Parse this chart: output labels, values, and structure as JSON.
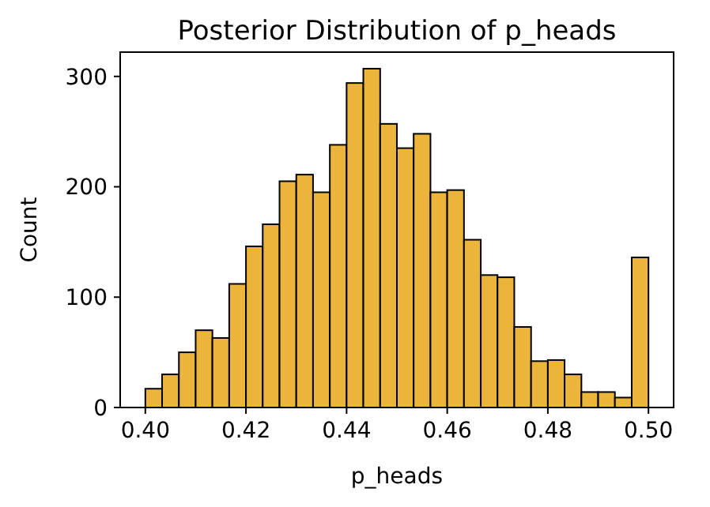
{
  "chart_data": {
    "type": "histogram",
    "title": "Posterior Distribution of p_heads",
    "xlabel": "p_heads",
    "ylabel": "Count",
    "color": "#ebb53c",
    "bins": [
      0.4,
      0.40333,
      0.40667,
      0.41,
      0.41333,
      0.41667,
      0.42,
      0.42333,
      0.42667,
      0.43,
      0.43333,
      0.43667,
      0.44,
      0.44333,
      0.44667,
      0.45,
      0.45333,
      0.45667,
      0.46,
      0.46333,
      0.46667,
      0.47,
      0.47333,
      0.47667,
      0.48,
      0.48333,
      0.48667,
      0.49,
      0.49333,
      0.49667,
      0.5
    ],
    "values": [
      17,
      30,
      50,
      70,
      63,
      112,
      146,
      166,
      205,
      211,
      195,
      238,
      294,
      307,
      257,
      235,
      248,
      195,
      197,
      152,
      120,
      118,
      73,
      42,
      43,
      30,
      14,
      14,
      9,
      136
    ],
    "xlim": [
      0.395,
      0.505
    ],
    "xticks": [
      {
        "value": 0.4,
        "label": "0.40"
      },
      {
        "value": 0.42,
        "label": "0.42"
      },
      {
        "value": 0.44,
        "label": "0.44"
      },
      {
        "value": 0.46,
        "label": "0.46"
      },
      {
        "value": 0.48,
        "label": "0.48"
      },
      {
        "value": 0.5,
        "label": "0.50"
      }
    ],
    "ylim": [
      0,
      322
    ],
    "yticks": [
      0,
      100,
      200,
      300
    ]
  }
}
